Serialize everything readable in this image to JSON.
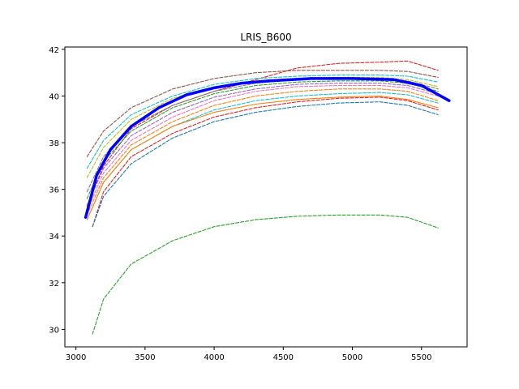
{
  "chart_data": {
    "type": "line",
    "title": "LRIS_B600",
    "xlabel": "",
    "ylabel": "",
    "xlim": [
      2920,
      5830
    ],
    "ylim": [
      29.25,
      42.1
    ],
    "xticks": [
      3000,
      3500,
      4000,
      4500,
      5000,
      5500
    ],
    "yticks": [
      30,
      32,
      34,
      36,
      38,
      40,
      42
    ],
    "grid": false,
    "legend": "none",
    "series": [
      {
        "style": "dashed",
        "color": "#d62728",
        "x": [
          3080,
          3200,
          3400,
          3700,
          4000,
          4300,
          4600,
          4900,
          5200,
          5400,
          5620
        ],
        "y": [
          35.3,
          37.0,
          38.6,
          39.6,
          40.2,
          40.7,
          41.2,
          41.4,
          41.45,
          41.5,
          41.1
        ]
      },
      {
        "style": "dashed",
        "color": "#8c564b",
        "x": [
          3080,
          3200,
          3400,
          3700,
          4000,
          4300,
          4600,
          4900,
          5200,
          5400,
          5620
        ],
        "y": [
          37.4,
          38.5,
          39.5,
          40.3,
          40.75,
          41.0,
          41.1,
          41.1,
          41.1,
          41.05,
          40.8
        ]
      },
      {
        "style": "dashed",
        "color": "#17becf",
        "x": [
          3080,
          3200,
          3400,
          3700,
          4000,
          4300,
          4600,
          4900,
          5200,
          5400,
          5620
        ],
        "y": [
          36.9,
          38.1,
          39.2,
          40.0,
          40.5,
          40.75,
          40.85,
          40.9,
          40.9,
          40.85,
          40.6
        ]
      },
      {
        "style": "dashed",
        "color": "#bcbd22",
        "x": [
          3080,
          3200,
          3400,
          3700,
          4000,
          4300,
          4600,
          4900,
          5200,
          5400,
          5620
        ],
        "y": [
          36.5,
          37.8,
          39.0,
          39.9,
          40.4,
          40.65,
          40.75,
          40.8,
          40.8,
          40.7,
          40.4
        ]
      },
      {
        "style": "dashed",
        "color": "#7f7f7f",
        "x": [
          3080,
          3200,
          3400,
          3700,
          4000,
          4300,
          4600,
          4900,
          5200,
          5400,
          5620
        ],
        "y": [
          35.9,
          37.4,
          38.7,
          39.6,
          40.2,
          40.55,
          40.7,
          40.75,
          40.75,
          40.65,
          40.3
        ]
      },
      {
        "style": "dashed",
        "color": "#2ca02c",
        "x": [
          3080,
          3200,
          3400,
          3700,
          4000,
          4300,
          4600,
          4900,
          5200,
          5400,
          5620
        ],
        "y": [
          35.6,
          37.2,
          38.5,
          39.5,
          40.1,
          40.45,
          40.6,
          40.65,
          40.65,
          40.55,
          40.2
        ]
      },
      {
        "style": "dashed",
        "color": "#9467bd",
        "x": [
          3080,
          3200,
          3400,
          3700,
          4000,
          4300,
          4600,
          4900,
          5200,
          5400,
          5620
        ],
        "y": [
          35.3,
          36.9,
          38.3,
          39.3,
          39.95,
          40.3,
          40.5,
          40.55,
          40.55,
          40.45,
          40.1
        ]
      },
      {
        "style": "dashed",
        "color": "#e377c2",
        "x": [
          3080,
          3200,
          3400,
          3700,
          4000,
          4300,
          4600,
          4900,
          5200,
          5400,
          5620
        ],
        "y": [
          35.1,
          36.7,
          38.1,
          39.1,
          39.8,
          40.2,
          40.4,
          40.45,
          40.45,
          40.35,
          40.0
        ]
      },
      {
        "style": "dashed",
        "color": "#ff7f0e",
        "x": [
          3080,
          3200,
          3400,
          3700,
          4000,
          4300,
          4600,
          4900,
          5200,
          5400,
          5620
        ],
        "y": [
          34.9,
          36.5,
          37.9,
          38.9,
          39.6,
          40.0,
          40.2,
          40.3,
          40.3,
          40.2,
          39.8
        ]
      },
      {
        "style": "dashed",
        "color": "#17becf",
        "x": [
          3080,
          3200,
          3400,
          3700,
          4000,
          4300,
          4600,
          4900,
          5200,
          5400,
          5620
        ],
        "y": [
          34.7,
          36.3,
          37.7,
          38.7,
          39.4,
          39.8,
          40.0,
          40.1,
          40.15,
          40.05,
          39.7
        ]
      },
      {
        "style": "dashed",
        "color": "#d62728",
        "x": [
          3120,
          3200,
          3400,
          3700,
          4000,
          4300,
          4600,
          4900,
          5200,
          5400,
          5620
        ],
        "y": [
          34.4,
          35.9,
          37.4,
          38.4,
          39.1,
          39.5,
          39.75,
          39.9,
          39.95,
          39.8,
          39.4
        ]
      },
      {
        "style": "dashed",
        "color": "#1f77b4",
        "x": [
          3120,
          3200,
          3400,
          3700,
          4000,
          4300,
          4600,
          4900,
          5200,
          5400,
          5620
        ],
        "y": [
          34.4,
          35.7,
          37.1,
          38.2,
          38.9,
          39.3,
          39.55,
          39.7,
          39.75,
          39.6,
          39.2
        ]
      },
      {
        "style": "solid",
        "color": "#ff7f0e",
        "x": [
          3080,
          3200,
          3400,
          3700,
          4000,
          4300,
          4600,
          4900,
          5200,
          5400,
          5620
        ],
        "y": [
          34.7,
          36.3,
          37.7,
          38.7,
          39.3,
          39.65,
          39.85,
          39.95,
          40.0,
          39.85,
          39.5
        ]
      },
      {
        "style": "dashed",
        "color": "#2ca02c",
        "x": [
          3120,
          3200,
          3400,
          3700,
          4000,
          4300,
          4600,
          4900,
          5200,
          5400,
          5620
        ],
        "y": [
          29.8,
          31.3,
          32.8,
          33.8,
          34.4,
          34.7,
          34.85,
          34.9,
          34.9,
          34.8,
          34.35
        ]
      },
      {
        "style": "solid",
        "color": "#0000ff",
        "thick": true,
        "x": [
          3070,
          3150,
          3250,
          3400,
          3600,
          3800,
          4000,
          4200,
          4400,
          4700,
          5000,
          5300,
          5500,
          5700
        ],
        "y": [
          34.8,
          36.6,
          37.7,
          38.7,
          39.5,
          40.05,
          40.35,
          40.55,
          40.65,
          40.75,
          40.75,
          40.7,
          40.45,
          39.8
        ]
      }
    ]
  }
}
